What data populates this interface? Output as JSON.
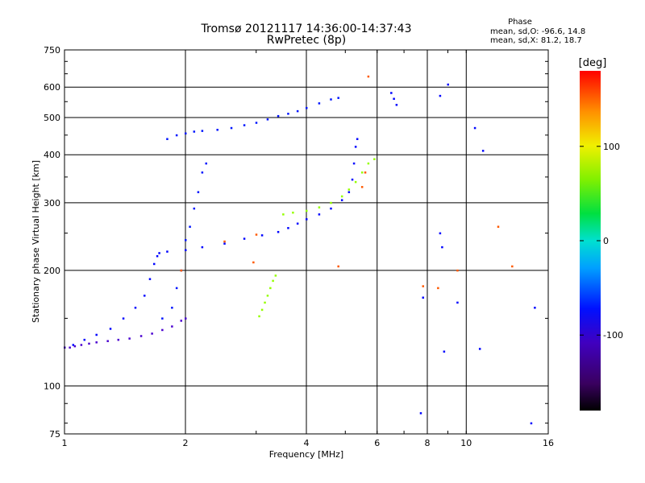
{
  "chart_data": {
    "type": "scatter",
    "title": "Tromsø 20121117 14:36:00-14:37:43",
    "subtitle": "RwPretec (8p)",
    "xlabel": "Frequency [MHz]",
    "ylabel": "Stationary phase Virtual Height [km]",
    "x_scale": "log",
    "y_scale": "log",
    "xlim": [
      1,
      16
    ],
    "ylim": [
      75,
      750
    ],
    "x_ticks": [
      1,
      2,
      4,
      6,
      8,
      10,
      16
    ],
    "y_ticks": [
      75,
      100,
      200,
      300,
      400,
      500,
      600,
      750
    ],
    "grid": true,
    "phase_stats": {
      "heading": "Phase",
      "line_o": "mean, sd,O: -96.6, 14.8",
      "line_x": "mean, sd,X:  81.2, 18.7"
    },
    "colorbar": {
      "label": "[deg]",
      "ticks": [
        100,
        0,
        -100
      ],
      "range": [
        -180,
        180
      ],
      "colormap": "rainbow (black-purple-blue-cyan-green-yellow-orange-red)"
    },
    "series": [
      {
        "phase": -105,
        "points": [
          [
            1.0,
            126
          ],
          [
            1.03,
            126
          ],
          [
            1.06,
            127
          ],
          [
            1.1,
            128
          ],
          [
            1.15,
            129
          ],
          [
            1.2,
            130
          ],
          [
            1.28,
            131
          ],
          [
            1.36,
            132
          ],
          [
            1.45,
            133
          ],
          [
            1.55,
            135
          ],
          [
            1.65,
            137
          ],
          [
            1.75,
            140
          ],
          [
            1.85,
            143
          ],
          [
            1.95,
            148
          ],
          [
            2.0,
            150
          ]
        ]
      },
      {
        "phase": -100,
        "points": [
          [
            1.05,
            128
          ],
          [
            1.12,
            132
          ],
          [
            1.2,
            136
          ],
          [
            1.3,
            141
          ],
          [
            1.4,
            150
          ],
          [
            1.5,
            160
          ],
          [
            1.58,
            172
          ],
          [
            1.63,
            190
          ],
          [
            1.67,
            208
          ],
          [
            1.7,
            218
          ],
          [
            1.72,
            222
          ],
          [
            1.8,
            224
          ],
          [
            2.0,
            226
          ],
          [
            2.2,
            230
          ],
          [
            2.5,
            235
          ],
          [
            2.8,
            242
          ],
          [
            3.1,
            247
          ],
          [
            3.4,
            252
          ],
          [
            3.6,
            258
          ],
          [
            3.8,
            265
          ],
          [
            4.0,
            272
          ],
          [
            4.3,
            280
          ],
          [
            4.6,
            290
          ],
          [
            4.9,
            305
          ],
          [
            5.1,
            320
          ],
          [
            5.2,
            345
          ],
          [
            5.25,
            380
          ],
          [
            5.3,
            420
          ],
          [
            5.35,
            440
          ]
        ]
      },
      {
        "phase": -95,
        "points": [
          [
            1.75,
            150
          ],
          [
            1.85,
            160
          ],
          [
            1.9,
            180
          ],
          [
            1.95,
            200
          ],
          [
            2.0,
            240
          ],
          [
            2.05,
            260
          ],
          [
            2.1,
            290
          ],
          [
            2.15,
            320
          ],
          [
            2.2,
            360
          ],
          [
            2.25,
            380
          ]
        ]
      },
      {
        "phase": -95,
        "points": [
          [
            1.8,
            440
          ],
          [
            1.9,
            450
          ],
          [
            2.0,
            455
          ],
          [
            2.1,
            460
          ],
          [
            2.2,
            462
          ],
          [
            2.4,
            465
          ],
          [
            2.6,
            470
          ],
          [
            2.8,
            478
          ],
          [
            3.0,
            485
          ],
          [
            3.2,
            495
          ],
          [
            3.4,
            505
          ],
          [
            3.6,
            512
          ],
          [
            3.8,
            520
          ],
          [
            4.0,
            530
          ],
          [
            4.3,
            545
          ],
          [
            4.6,
            558
          ],
          [
            4.8,
            563
          ]
        ]
      },
      {
        "phase": 80,
        "points": [
          [
            3.05,
            152
          ],
          [
            3.1,
            158
          ],
          [
            3.15,
            165
          ],
          [
            3.2,
            172
          ],
          [
            3.25,
            180
          ],
          [
            3.3,
            188
          ],
          [
            3.35,
            194
          ]
        ]
      },
      {
        "phase": 80,
        "points": [
          [
            3.5,
            280
          ],
          [
            3.7,
            283
          ],
          [
            4.0,
            286
          ],
          [
            4.3,
            292
          ],
          [
            4.6,
            300
          ],
          [
            4.9,
            312
          ],
          [
            5.1,
            325
          ],
          [
            5.3,
            340
          ],
          [
            5.5,
            360
          ],
          [
            5.7,
            380
          ],
          [
            5.9,
            390
          ]
        ]
      },
      {
        "phase": 155,
        "points": [
          [
            1.95,
            200
          ],
          [
            2.5,
            238
          ],
          [
            3.0,
            248
          ],
          [
            5.5,
            330
          ],
          [
            5.6,
            360
          ],
          [
            2.95,
            210
          ],
          [
            5.7,
            640
          ],
          [
            9.5,
            200
          ],
          [
            12.0,
            260
          ],
          [
            13.0,
            205
          ],
          [
            7.8,
            182
          ],
          [
            8.5,
            180
          ],
          [
            4.8,
            205
          ]
        ]
      },
      {
        "phase": -100,
        "points": [
          [
            6.5,
            580
          ],
          [
            6.6,
            560
          ],
          [
            6.7,
            540
          ],
          [
            8.6,
            570
          ],
          [
            9.0,
            610
          ],
          [
            10.5,
            470
          ],
          [
            11.0,
            410
          ],
          [
            8.6,
            250
          ],
          [
            8.7,
            230
          ],
          [
            9.5,
            165
          ],
          [
            14.5,
            80
          ],
          [
            14.8,
            160
          ],
          [
            7.7,
            85
          ],
          [
            7.8,
            170
          ],
          [
            10.8,
            125
          ],
          [
            8.8,
            123
          ]
        ]
      }
    ]
  }
}
